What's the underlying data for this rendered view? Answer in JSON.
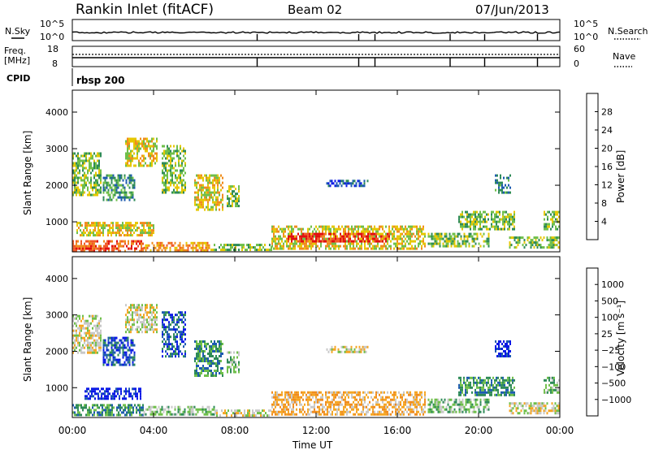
{
  "header": {
    "station": "Rankin Inlet (fitACF)",
    "beam": "Beam 02",
    "date": "07/Jun/2013"
  },
  "strips": {
    "nsky_label": "N.Sky",
    "nsearch_label": "N.Search",
    "noise_ticks": [
      "10^5",
      "10^0"
    ],
    "freq_label_1": "Freq.",
    "freq_label_2": "[MHz]",
    "freq_ticks": [
      "18",
      "8"
    ],
    "nave_label": "Nave",
    "nave_ticks": [
      "60",
      "0"
    ],
    "cpid_label": "CPID",
    "cpid_value": "rbsp 200"
  },
  "chart_data": [
    {
      "type": "heatmap",
      "name": "power",
      "ylabel": "Slant Range [km]",
      "xlabel": "",
      "x_ticks": [
        "00:00",
        "04:00",
        "08:00",
        "12:00",
        "16:00",
        "20:00",
        "00:00"
      ],
      "y_ticks": [
        1000,
        2000,
        3000,
        4000
      ],
      "xlim_hours": [
        0,
        24
      ],
      "ylim_km": [
        180,
        4600
      ],
      "colorbar": {
        "label": "Power [dB]",
        "ticks": [
          "28",
          "24",
          "20",
          "16",
          "12",
          "8",
          "4"
        ],
        "colors": [
          "#0a19e6",
          "#1d5bb0",
          "#2e8b57",
          "#6fbf4a",
          "#e6c700",
          "#f08c1e",
          "#f05a28",
          "#e10f0f"
        ]
      },
      "regions": [
        {
          "t0": 0.0,
          "t1": 1.4,
          "r0": 1700,
          "r1": 2900,
          "level": 3
        },
        {
          "t0": 1.5,
          "t1": 3.1,
          "r0": 1600,
          "r1": 2300,
          "level": 2
        },
        {
          "t0": 2.6,
          "t1": 4.2,
          "r0": 2500,
          "r1": 3300,
          "level": 4
        },
        {
          "t0": 4.4,
          "t1": 5.6,
          "r0": 1800,
          "r1": 3100,
          "level": 3
        },
        {
          "t0": 6.0,
          "t1": 7.4,
          "r0": 1300,
          "r1": 2300,
          "level": 4
        },
        {
          "t0": 7.6,
          "t1": 8.2,
          "r0": 1400,
          "r1": 2000,
          "level": 3
        },
        {
          "t0": 0.2,
          "t1": 4.0,
          "r0": 600,
          "r1": 1000,
          "level": 4
        },
        {
          "t0": 0.0,
          "t1": 3.5,
          "r0": 200,
          "r1": 500,
          "level": 6
        },
        {
          "t0": 3.5,
          "t1": 6.8,
          "r0": 200,
          "r1": 450,
          "level": 5
        },
        {
          "t0": 6.8,
          "t1": 9.8,
          "r0": 200,
          "r1": 400,
          "level": 3
        },
        {
          "t0": 9.8,
          "t1": 17.4,
          "r0": 250,
          "r1": 900,
          "level": 4
        },
        {
          "t0": 10.6,
          "t1": 15.6,
          "r0": 450,
          "r1": 700,
          "level": 7
        },
        {
          "t0": 12.5,
          "t1": 14.6,
          "r0": 1950,
          "r1": 2150,
          "level": 1
        },
        {
          "t0": 17.5,
          "t1": 20.5,
          "r0": 300,
          "r1": 700,
          "level": 3
        },
        {
          "t0": 19.0,
          "t1": 21.8,
          "r0": 750,
          "r1": 1300,
          "level": 3
        },
        {
          "t0": 20.8,
          "t1": 21.6,
          "r0": 1800,
          "r1": 2300,
          "level": 2
        },
        {
          "t0": 23.2,
          "t1": 24.0,
          "r0": 800,
          "r1": 1300,
          "level": 3
        },
        {
          "t0": 21.5,
          "t1": 24.0,
          "r0": 250,
          "r1": 600,
          "level": 3
        }
      ]
    },
    {
      "type": "heatmap",
      "name": "velocity",
      "ylabel": "Slant Range [km]",
      "xlabel": "Time UT",
      "x_ticks": [
        "00:00",
        "04:00",
        "08:00",
        "12:00",
        "16:00",
        "20:00",
        "00:00"
      ],
      "y_ticks": [
        1000,
        2000,
        3000,
        4000
      ],
      "xlim_hours": [
        0,
        24
      ],
      "ylim_km": [
        180,
        4600
      ],
      "colorbar": {
        "label": "Velocity [m s⁻¹]",
        "ticks": [
          "1000",
          "500",
          "100",
          "25",
          "−25",
          "−100",
          "−500",
          "−1000"
        ],
        "colors": [
          "#e10f0f",
          "#f05a28",
          "#f08c1e",
          "#f5a623",
          "#c8c8c8",
          "#6fbf4a",
          "#2e8b57",
          "#1d5bb0",
          "#0a19e6"
        ]
      },
      "regions": [
        {
          "t0": 0.0,
          "t1": 1.4,
          "r0": 1900,
          "r1": 3000,
          "level": 4
        },
        {
          "t0": 1.5,
          "t1": 3.1,
          "r0": 1600,
          "r1": 2400,
          "level": 7
        },
        {
          "t0": 2.6,
          "t1": 4.2,
          "r0": 2500,
          "r1": 3300,
          "level": 4
        },
        {
          "t0": 4.4,
          "t1": 5.6,
          "r0": 1800,
          "r1": 3100,
          "level": 7
        },
        {
          "t0": 6.0,
          "t1": 7.4,
          "r0": 1300,
          "r1": 2300,
          "level": 6
        },
        {
          "t0": 7.6,
          "t1": 8.2,
          "r0": 1400,
          "r1": 2000,
          "level": 5
        },
        {
          "t0": 0.6,
          "t1": 3.4,
          "r0": 650,
          "r1": 1000,
          "level": 8
        },
        {
          "t0": 0.0,
          "t1": 3.5,
          "r0": 200,
          "r1": 550,
          "level": 6
        },
        {
          "t0": 3.5,
          "t1": 7.0,
          "r0": 200,
          "r1": 500,
          "level": 5
        },
        {
          "t0": 7.0,
          "t1": 9.8,
          "r0": 200,
          "r1": 400,
          "level": 4
        },
        {
          "t0": 9.8,
          "t1": 17.4,
          "r0": 220,
          "r1": 900,
          "level": 3
        },
        {
          "t0": 12.5,
          "t1": 14.6,
          "r0": 1950,
          "r1": 2150,
          "level": 4
        },
        {
          "t0": 17.5,
          "t1": 20.5,
          "r0": 300,
          "r1": 700,
          "level": 5
        },
        {
          "t0": 19.0,
          "t1": 21.8,
          "r0": 750,
          "r1": 1300,
          "level": 6
        },
        {
          "t0": 20.8,
          "t1": 21.6,
          "r0": 1800,
          "r1": 2300,
          "level": 8
        },
        {
          "t0": 23.2,
          "t1": 24.0,
          "r0": 800,
          "r1": 1300,
          "level": 5
        },
        {
          "t0": 21.5,
          "t1": 24.0,
          "r0": 250,
          "r1": 600,
          "level": 4
        }
      ]
    }
  ]
}
